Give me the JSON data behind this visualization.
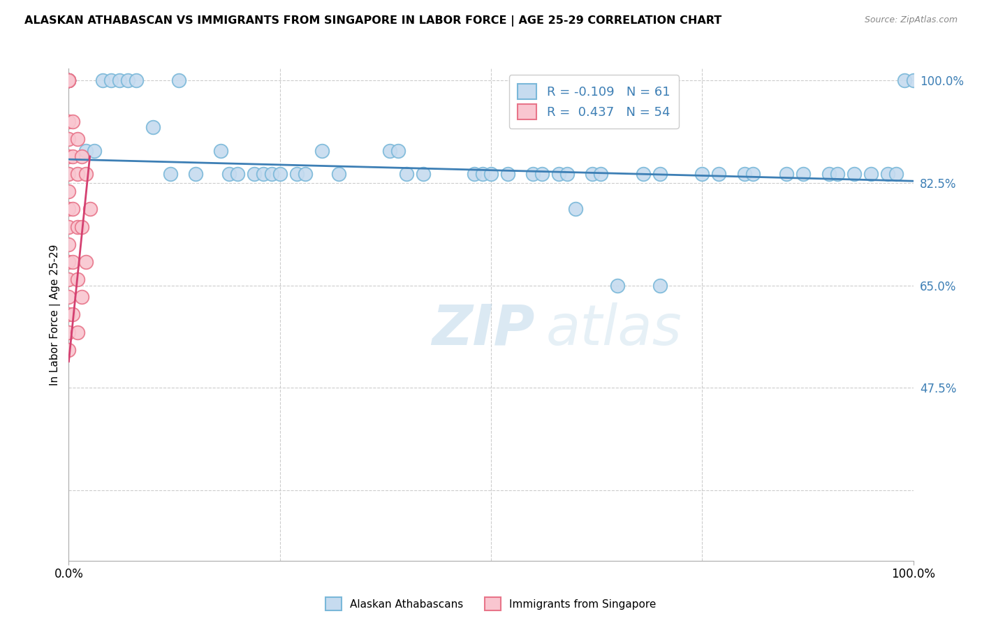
{
  "title": "ALASKAN ATHABASCAN VS IMMIGRANTS FROM SINGAPORE IN LABOR FORCE | AGE 25-29 CORRELATION CHART",
  "source": "Source: ZipAtlas.com",
  "ylabel": "In Labor Force | Age 25-29",
  "xlim": [
    0,
    1.0
  ],
  "ylim": [
    0.18,
    1.02
  ],
  "ytick_values": [
    1.0,
    0.825,
    0.65,
    0.475
  ],
  "ytick_labels": [
    "100.0%",
    "82.5%",
    "65.0%",
    "47.5%"
  ],
  "background_color": "#ffffff",
  "grid_color": "#cccccc",
  "legend_R1": "-0.109",
  "legend_N1": "61",
  "legend_R2": "0.437",
  "legend_N2": "54",
  "blue_color": "#7ab8d9",
  "pink_color": "#e8758a",
  "blue_fill": "#c6dbef",
  "pink_fill": "#f9c6d0",
  "trend_blue": "#3d7fb5",
  "trend_pink": "#d44070",
  "blue_trend_x0": 0.0,
  "blue_trend_y0": 0.865,
  "blue_trend_x1": 1.0,
  "blue_trend_y1": 0.828,
  "pink_trend_x0": 0.0,
  "pink_trend_y0": 0.52,
  "pink_trend_x1": 0.025,
  "pink_trend_y1": 0.87,
  "blue_scatter_x": [
    0.0,
    0.0,
    0.0,
    0.0,
    0.0,
    0.02,
    0.03,
    0.04,
    0.05,
    0.06,
    0.07,
    0.08,
    0.1,
    0.12,
    0.13,
    0.15,
    0.18,
    0.19,
    0.2,
    0.22,
    0.23,
    0.24,
    0.25,
    0.27,
    0.28,
    0.3,
    0.32,
    0.38,
    0.39,
    0.4,
    0.42,
    0.48,
    0.49,
    0.5,
    0.52,
    0.55,
    0.56,
    0.58,
    0.59,
    0.62,
    0.63,
    0.68,
    0.7,
    0.75,
    0.77,
    0.8,
    0.81,
    0.85,
    0.87,
    0.9,
    0.91,
    0.93,
    0.95,
    0.97,
    0.98,
    0.99,
    1.0,
    0.6,
    0.65,
    0.7
  ],
  "blue_scatter_y": [
    1.0,
    1.0,
    1.0,
    1.0,
    1.0,
    0.88,
    0.88,
    1.0,
    1.0,
    1.0,
    1.0,
    1.0,
    0.92,
    0.84,
    1.0,
    0.84,
    0.88,
    0.84,
    0.84,
    0.84,
    0.84,
    0.84,
    0.84,
    0.84,
    0.84,
    0.88,
    0.84,
    0.88,
    0.88,
    0.84,
    0.84,
    0.84,
    0.84,
    0.84,
    0.84,
    0.84,
    0.84,
    0.84,
    0.84,
    0.84,
    0.84,
    0.84,
    0.84,
    0.84,
    0.84,
    0.84,
    0.84,
    0.84,
    0.84,
    0.84,
    0.84,
    0.84,
    0.84,
    0.84,
    0.84,
    1.0,
    1.0,
    0.78,
    0.65,
    0.65
  ],
  "pink_scatter_x": [
    0.0,
    0.0,
    0.0,
    0.0,
    0.0,
    0.0,
    0.0,
    0.0,
    0.0,
    0.0,
    0.0,
    0.0,
    0.0,
    0.0,
    0.0,
    0.0,
    0.0,
    0.0,
    0.0,
    0.0,
    0.005,
    0.005,
    0.005,
    0.005,
    0.005,
    0.01,
    0.01,
    0.01,
    0.01,
    0.01,
    0.015,
    0.015,
    0.015,
    0.02,
    0.02,
    0.025
  ],
  "pink_scatter_y": [
    1.0,
    1.0,
    1.0,
    1.0,
    1.0,
    1.0,
    0.93,
    0.9,
    0.87,
    0.84,
    0.81,
    0.78,
    0.75,
    0.72,
    0.69,
    0.66,
    0.63,
    0.6,
    0.57,
    0.54,
    0.93,
    0.87,
    0.78,
    0.69,
    0.6,
    0.9,
    0.84,
    0.75,
    0.66,
    0.57,
    0.87,
    0.75,
    0.63,
    0.84,
    0.69,
    0.78
  ]
}
